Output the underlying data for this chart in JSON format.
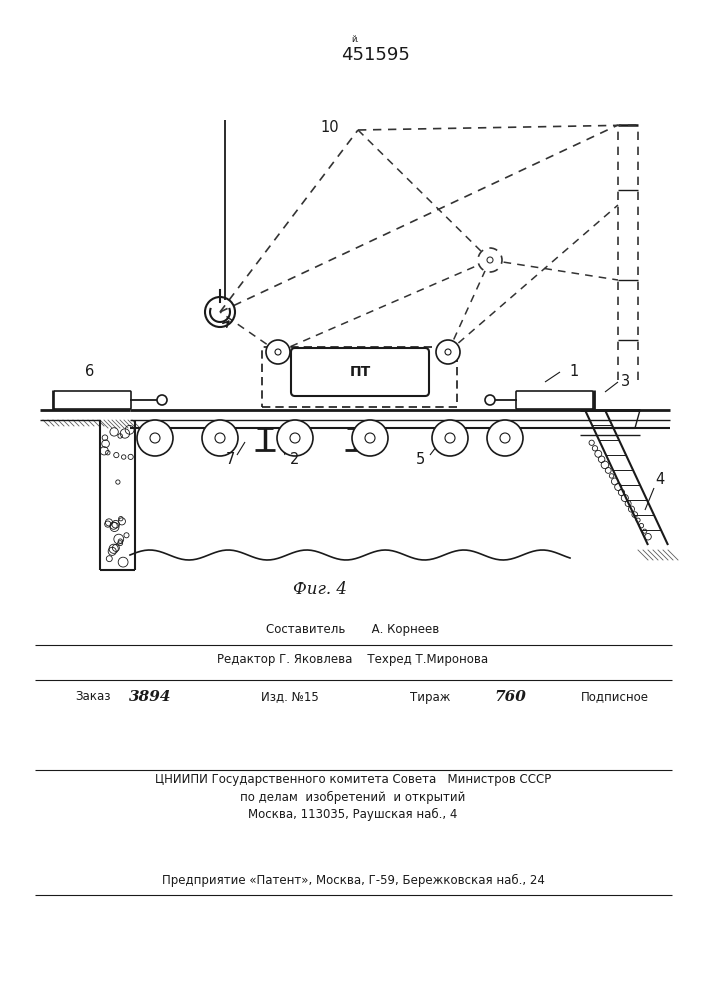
{
  "title": "451595",
  "background_color": "#ffffff",
  "line_color": "#1a1a1a",
  "fig_caption": "Фиг. 4",
  "bottom_lines": [
    [
      "center",
      0.355,
      "Составитель       А. Корнеев",
      8.5
    ],
    [
      "center",
      0.338,
      "Редактор Г. Яковлева    Техред Т.Миронова",
      8.5
    ]
  ],
  "zakazLine": {
    "zakazLabel": "Заказ",
    "zakazNum": "3894",
    "izdLabel": "Изд. №15",
    "tirazhLabel": "Тираж",
    "tirazhNum": "760",
    "podpisLabel": "Подписное"
  },
  "cniipLines": [
    "ЦНИИПИ Государственного комитета Совета   Министров СССР",
    "по делам  изобретений  и открытий",
    "Москва, 113035, Раушская наб., 4"
  ],
  "patentLine": "Предприятие «Патент», Москва, Г-59, Бережковская наб., 24"
}
